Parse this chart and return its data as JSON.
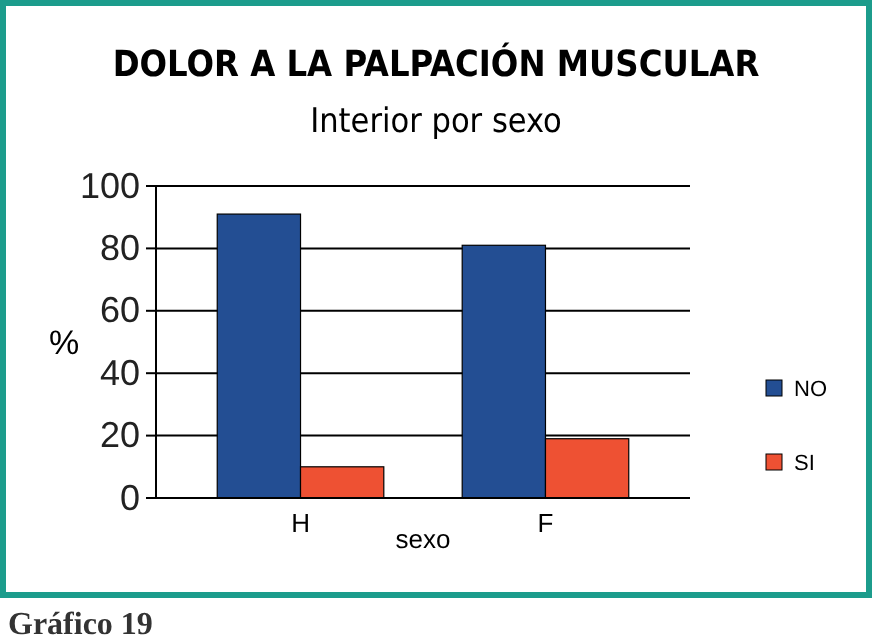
{
  "chart_data": {
    "type": "bar",
    "title": "DOLOR A LA PALPACIÓN MUSCULAR",
    "subtitle": "Interior por sexo",
    "xlabel": "sexo",
    "ylabel": "%",
    "categories": [
      "H",
      "F"
    ],
    "series": [
      {
        "name": "NO",
        "color": "#234e93",
        "values": [
          91,
          81
        ]
      },
      {
        "name": "SI",
        "color": "#ee5133",
        "values": [
          10,
          19
        ]
      }
    ],
    "ylim": [
      0,
      100
    ],
    "yticks": [
      0,
      20,
      40,
      60,
      80,
      100
    ],
    "grid": "y",
    "legend": "right",
    "annotations": [
      "Gráfico 19"
    ]
  }
}
